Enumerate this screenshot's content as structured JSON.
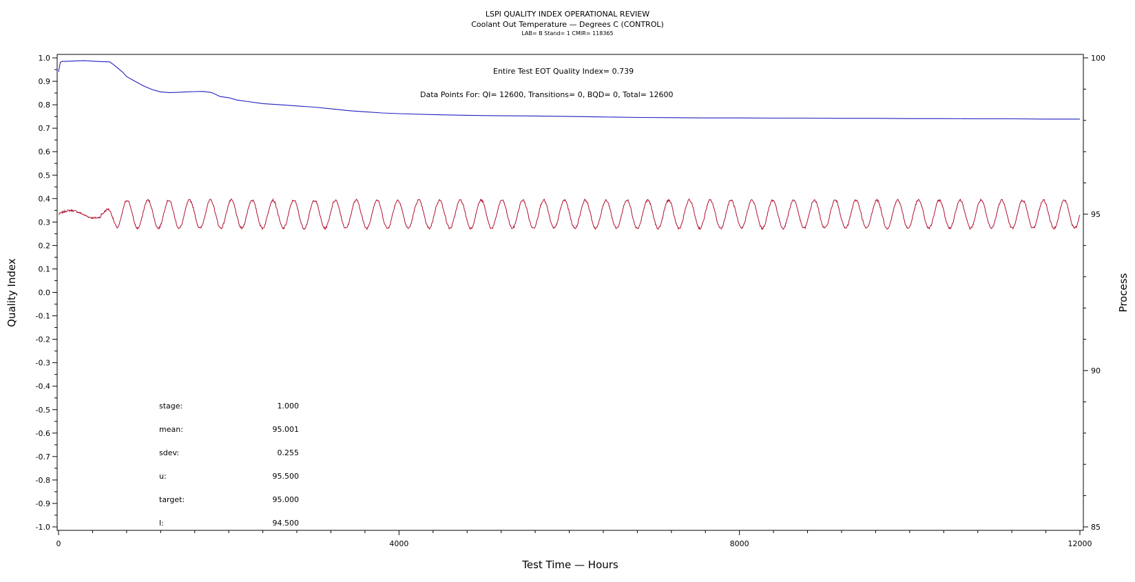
{
  "header": {
    "title": "LSPI QUALITY INDEX OPERATIONAL REVIEW",
    "subtitle": "Coolant Out Temperature — Degrees C (CONTROL)",
    "info": "LAB= B Stand= 1 CMIR= 118365"
  },
  "annotations": {
    "quality_index": "Entire Test EOT Quality Index=   0.739",
    "data_points": "Data Points For: QI= 12600, Transitions=      0, BQD=      0, Total= 12600"
  },
  "stats": [
    {
      "label": "stage:",
      "value": "1.000"
    },
    {
      "label": "mean:",
      "value": "95.001"
    },
    {
      "label": "sdev:",
      "value": "0.255"
    },
    {
      "label": "u:",
      "value": "95.500"
    },
    {
      "label": "target:",
      "value": "95.000"
    },
    {
      "label": "l:",
      "value": "94.500"
    }
  ],
  "colors": {
    "quality_index_line": "#1e1ebe",
    "process_line": "#b01030",
    "axis": "#000000"
  },
  "chart_data": {
    "type": "line",
    "xlabel": "Test Time — Hours",
    "ylabel": "Quality Index",
    "y2label": "Process",
    "xlim": [
      0,
      12000
    ],
    "ylim": [
      -1.0,
      1.0
    ],
    "y2lim": [
      85,
      100
    ],
    "x_ticks": [
      0,
      4000,
      8000,
      12000
    ],
    "y_ticks": [
      "-1.0",
      "-0.9",
      "-0.8",
      "-0.7",
      "-0.6",
      "-0.5",
      "-0.4",
      "-0.3",
      "-0.2",
      "-0.1",
      "0.0",
      "0.1",
      "0.2",
      "0.3",
      "0.4",
      "0.5",
      "0.6",
      "0.7",
      "0.8",
      "0.9",
      "1.0"
    ],
    "y2_ticks": [
      85,
      90,
      95,
      100
    ],
    "grid": false,
    "series": [
      {
        "axis": "left",
        "x": [
          0,
          20,
          40,
          100,
          200,
          300,
          400,
          500,
          600,
          650,
          700,
          750,
          800,
          900,
          1000,
          1100,
          1200,
          1300,
          1400,
          1500,
          1600,
          1700,
          1800,
          1900,
          2000,
          2100,
          2200,
          2400,
          2600,
          2800,
          3000,
          3200,
          3400,
          3600,
          3800,
          4000,
          4400,
          4800,
          5200,
          5600,
          6000,
          6400,
          6800,
          7200,
          7600,
          8000,
          8400,
          8800,
          9200,
          9600,
          10000,
          10400,
          10800,
          11200,
          11600,
          12000
        ],
        "values": [
          0.94,
          0.98,
          0.985,
          0.985,
          0.987,
          0.988,
          0.986,
          0.984,
          0.983,
          0.97,
          0.955,
          0.94,
          0.92,
          0.9,
          0.88,
          0.865,
          0.855,
          0.852,
          0.853,
          0.855,
          0.856,
          0.857,
          0.852,
          0.835,
          0.83,
          0.82,
          0.815,
          0.805,
          0.8,
          0.795,
          0.79,
          0.783,
          0.775,
          0.77,
          0.765,
          0.762,
          0.758,
          0.755,
          0.753,
          0.752,
          0.75,
          0.748,
          0.746,
          0.745,
          0.744,
          0.744,
          0.743,
          0.743,
          0.742,
          0.742,
          0.741,
          0.741,
          0.74,
          0.74,
          0.739,
          0.739
        ]
      },
      {
        "axis": "right",
        "baseline": 95.0,
        "amplitude": 0.45,
        "cycles": 47,
        "x_start": 500,
        "x_end": 12000
      }
    ]
  }
}
